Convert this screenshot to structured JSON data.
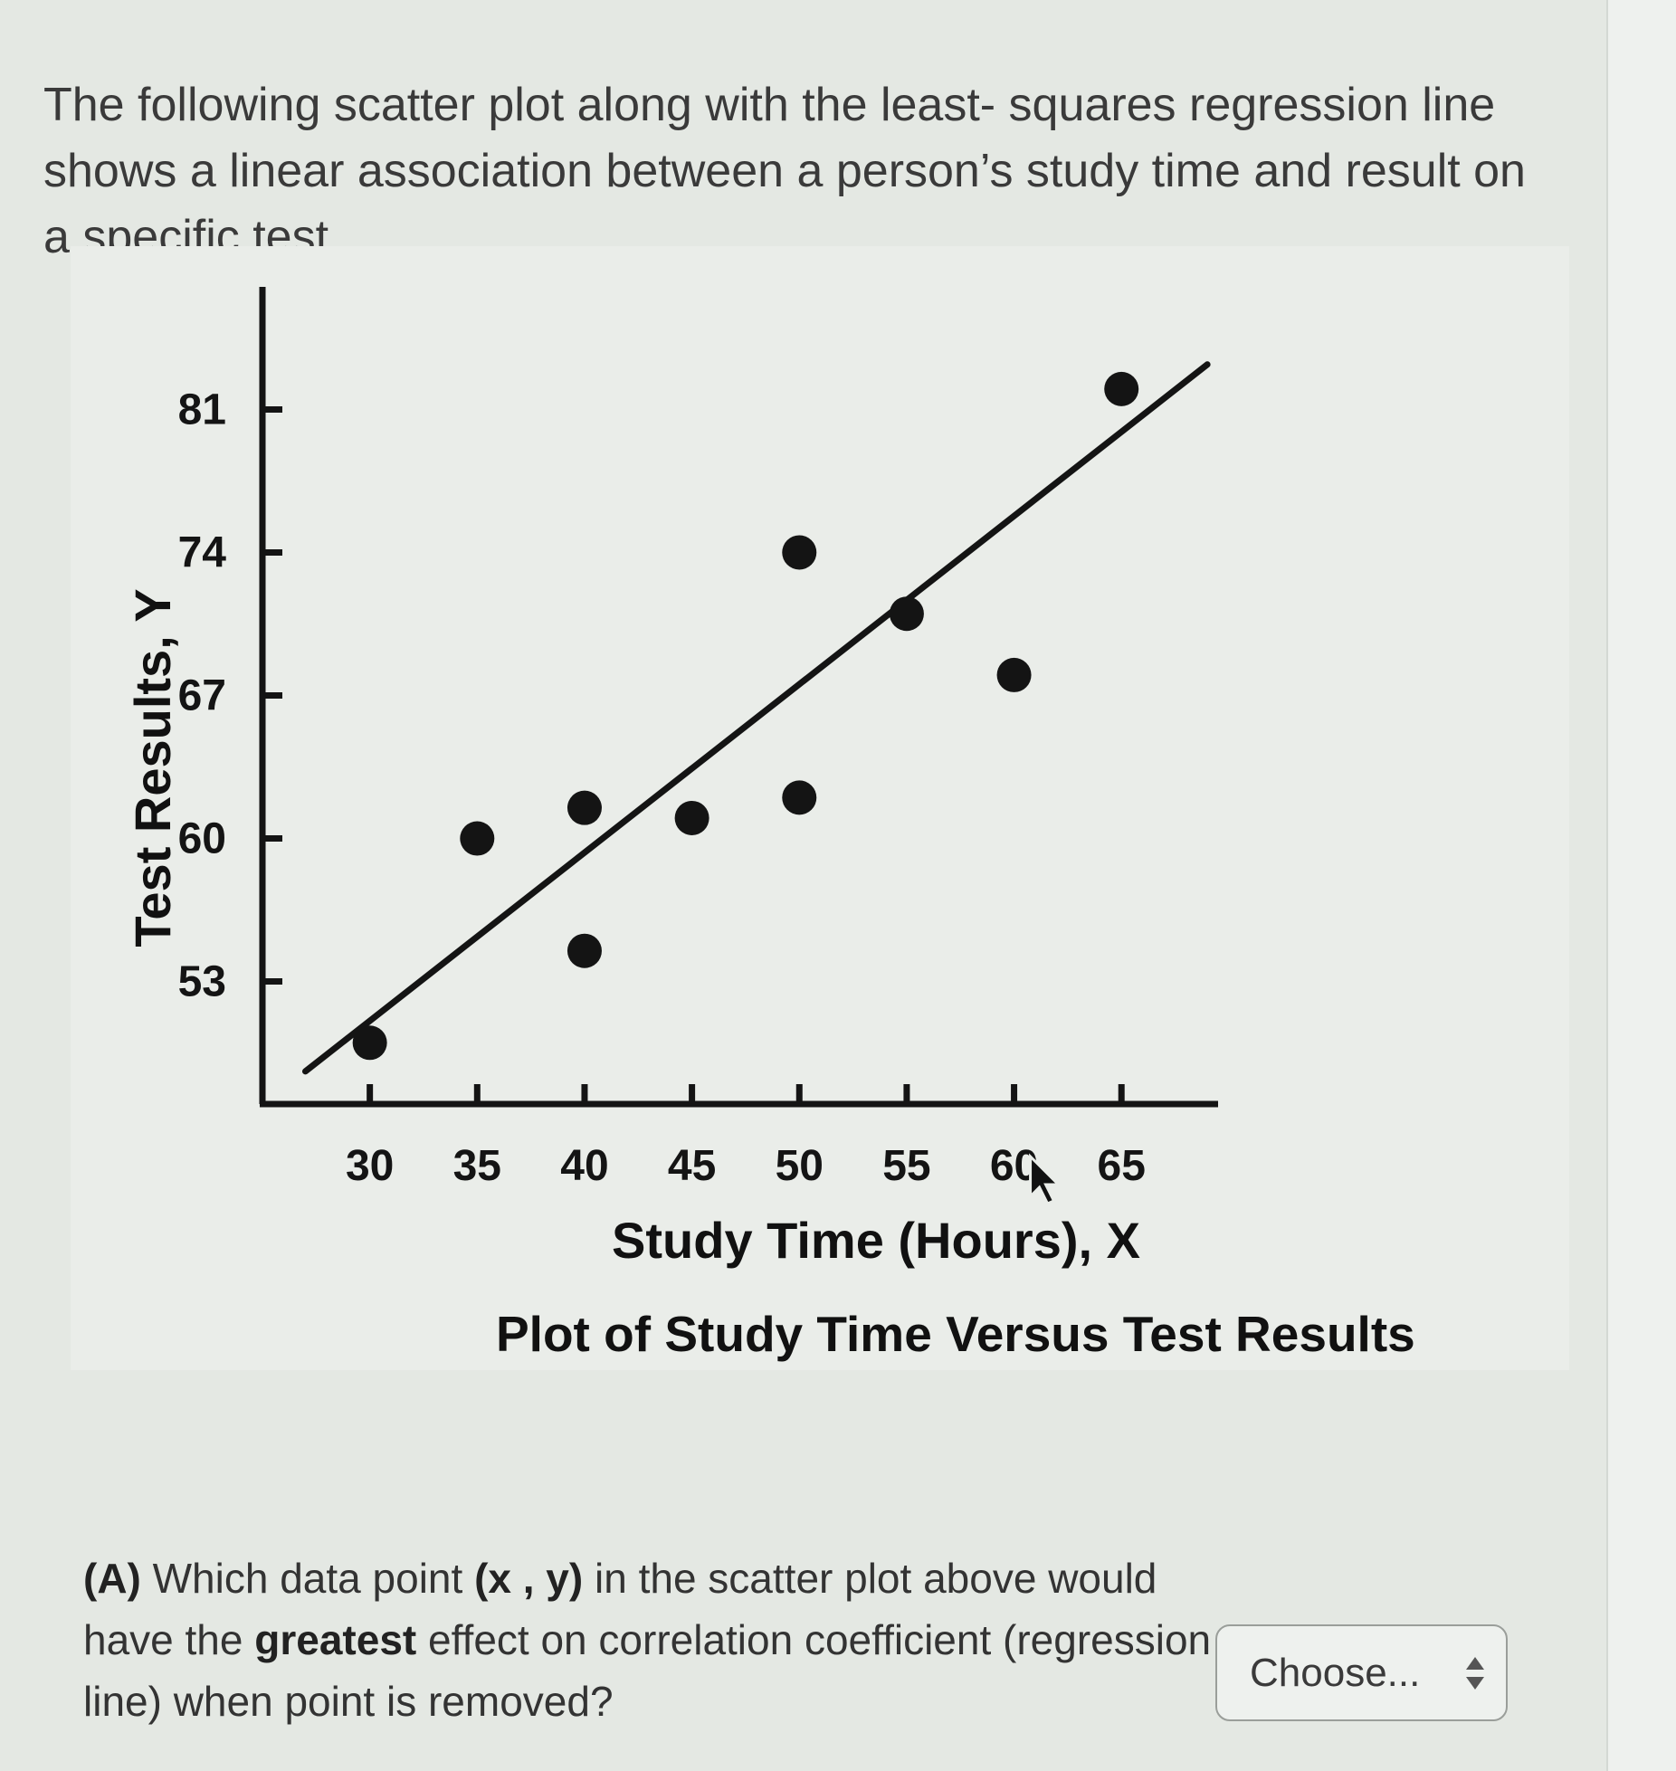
{
  "intro": {
    "text": "The following scatter plot along with the least- squares regression line shows a linear association between a person’s study time and result on a specific test."
  },
  "chart_data": {
    "type": "scatter",
    "title": "Plot of Study Time Versus Test Results",
    "xlabel": "Study Time (Hours), X",
    "ylabel": "Test Results, Y",
    "x_ticks": [
      30,
      35,
      40,
      45,
      50,
      55,
      60,
      65
    ],
    "y_ticks": [
      53,
      60,
      67,
      74,
      81
    ],
    "xlim": [
      25,
      69.5
    ],
    "ylim": [
      47,
      87
    ],
    "points": [
      {
        "x": 30,
        "y": 50
      },
      {
        "x": 35,
        "y": 60
      },
      {
        "x": 40,
        "y": 61.5
      },
      {
        "x": 40,
        "y": 54.5
      },
      {
        "x": 45,
        "y": 61
      },
      {
        "x": 50,
        "y": 74
      },
      {
        "x": 50,
        "y": 62
      },
      {
        "x": 55,
        "y": 71
      },
      {
        "x": 60,
        "y": 68
      },
      {
        "x": 65,
        "y": 82
      }
    ],
    "regression_line": {
      "x": [
        27,
        69
      ],
      "y": [
        48.6,
        83.2
      ]
    },
    "grid": false,
    "legend": "none",
    "marker_color": "#141414",
    "line_color": "#141414"
  },
  "question": {
    "label": "(A)",
    "text_1": " Which data point ",
    "point_notation": "(x , y)",
    "text_2": " in the scatter plot above would have the ",
    "emphasis": "greatest",
    "text_3": " effect on correlation coefficient (regression line) when point is removed?"
  },
  "select": {
    "value": "Choose...",
    "icon": "up-down-arrows-icon"
  }
}
